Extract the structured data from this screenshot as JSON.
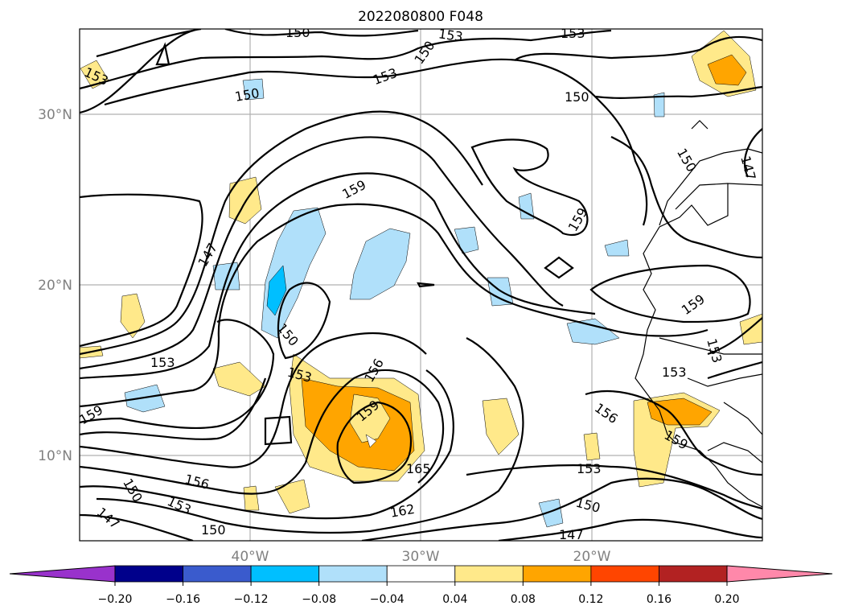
{
  "title": "2022080800 F048",
  "map": {
    "lat_labels": [
      "30°N",
      "20°N",
      "10°N"
    ],
    "lon_labels": [
      "40°W",
      "30°W",
      "20°W"
    ],
    "contour_labels": [
      "150",
      "153",
      "150",
      "153",
      "150",
      "153",
      "150",
      "147",
      "159",
      "147",
      "153",
      "150",
      "153",
      "156",
      "159",
      "165",
      "162",
      "156",
      "153",
      "150",
      "147",
      "150",
      "156",
      "153",
      "159",
      "159",
      "153",
      "159"
    ]
  },
  "colorbar": {
    "ticks": [
      "−0.20",
      "−0.16",
      "−0.12",
      "−0.08",
      "−0.04",
      "0.04",
      "0.08",
      "0.12",
      "0.16",
      "0.20"
    ],
    "colors": [
      "#9932cc",
      "#00008b",
      "#3a5bcd",
      "#00bfff",
      "#b0e0fa",
      "#ffffff",
      "#ffe98a",
      "#ffa500",
      "#ff4500",
      "#b22222",
      "#ff88aa"
    ]
  }
}
